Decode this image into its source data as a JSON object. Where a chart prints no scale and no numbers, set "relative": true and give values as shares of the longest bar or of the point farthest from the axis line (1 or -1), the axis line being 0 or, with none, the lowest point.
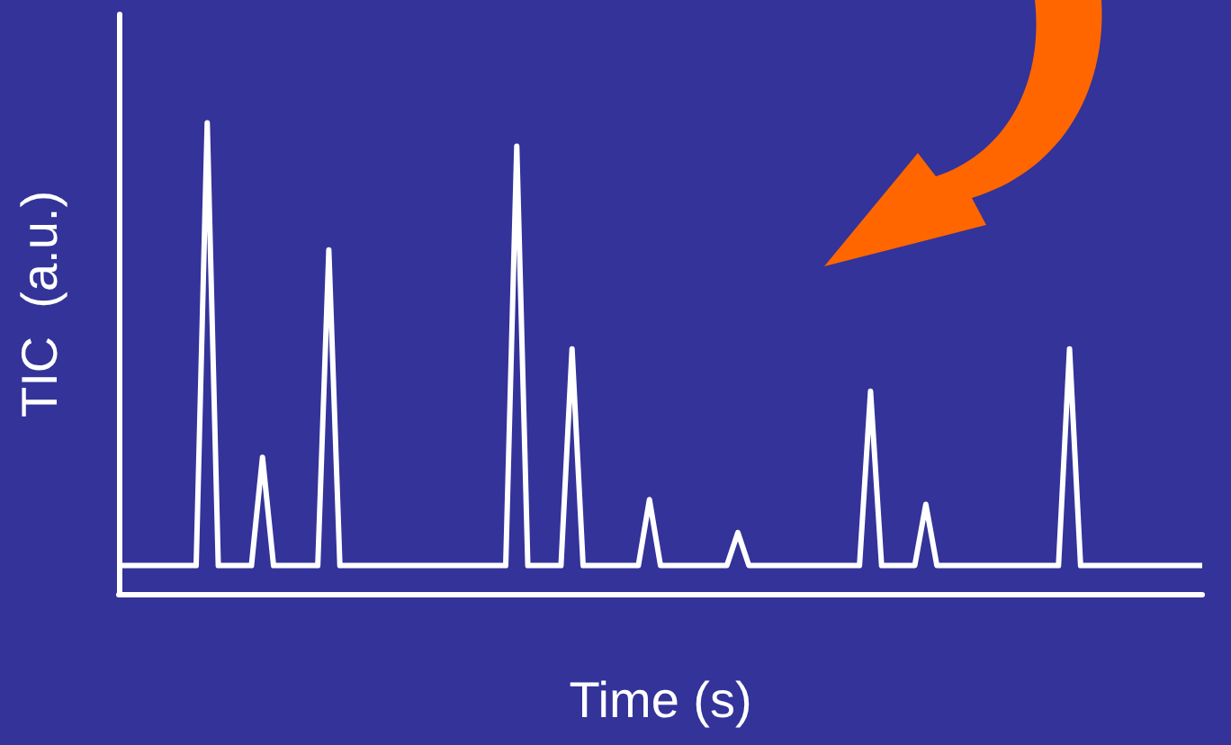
{
  "chart_data": {
    "type": "line",
    "relative": true,
    "xlabel": "Time (s)",
    "ylabel": "TIC  (a.u.)",
    "color": "#ffffff",
    "categories": [
      null,
      null,
      null,
      null,
      null,
      null,
      null,
      null,
      null,
      null,
      null,
      null,
      null,
      null,
      null,
      null,
      null,
      null,
      null,
      null,
      null,
      null,
      null,
      null,
      null,
      null,
      null,
      null,
      null,
      null,
      null,
      null,
      null,
      null,
      null,
      null,
      null,
      null,
      null,
      null,
      null,
      null,
      null,
      null,
      null,
      null,
      null,
      null,
      null,
      null,
      null,
      null,
      null,
      null,
      null,
      null,
      null,
      null,
      null,
      null,
      null,
      null,
      null,
      null,
      null,
      null,
      null,
      null,
      null,
      null,
      null,
      null,
      null,
      null,
      null,
      null,
      null,
      null,
      null,
      null,
      null,
      null,
      null,
      null,
      null,
      null,
      null,
      null,
      null,
      null,
      null,
      null,
      null,
      null,
      null,
      null,
      null,
      null,
      null
    ],
    "values": [
      0.06,
      0.06,
      0.06,
      0.06,
      0.06,
      0.06,
      0.06,
      0.06,
      1,
      0.06,
      0.06,
      0.06,
      0.06,
      0.29,
      0.06,
      0.06,
      0.06,
      0.06,
      0.06,
      0.73,
      0.06,
      0.06,
      0.06,
      0.06,
      0.06,
      0.06,
      0.06,
      0.06,
      0.06,
      0.06,
      0.06,
      0.06,
      0.06,
      0.06,
      0.06,
      0.06,
      0.95,
      0.06,
      0.06,
      0.06,
      0.06,
      0.52,
      0.06,
      0.06,
      0.06,
      0.06,
      0.06,
      0.06,
      0.2,
      0.06,
      0.06,
      0.06,
      0.06,
      0.06,
      0.06,
      0.06,
      0.13,
      0.06,
      0.06,
      0.06,
      0.06,
      0.06,
      0.06,
      0.06,
      0.06,
      0.06,
      0.06,
      0.06,
      0.43,
      0.06,
      0.06,
      0.06,
      0.06,
      0.19,
      0.06,
      0.06,
      0.06,
      0.06,
      0.06,
      0.06,
      0.06,
      0.06,
      0.06,
      0.06,
      0.06,
      0.06,
      0.52,
      0.06,
      0.06,
      0.06,
      0.06,
      0.06,
      0.06,
      0.06,
      0.06,
      0.06,
      0.06,
      0.06,
      0.06
    ]
  }
}
